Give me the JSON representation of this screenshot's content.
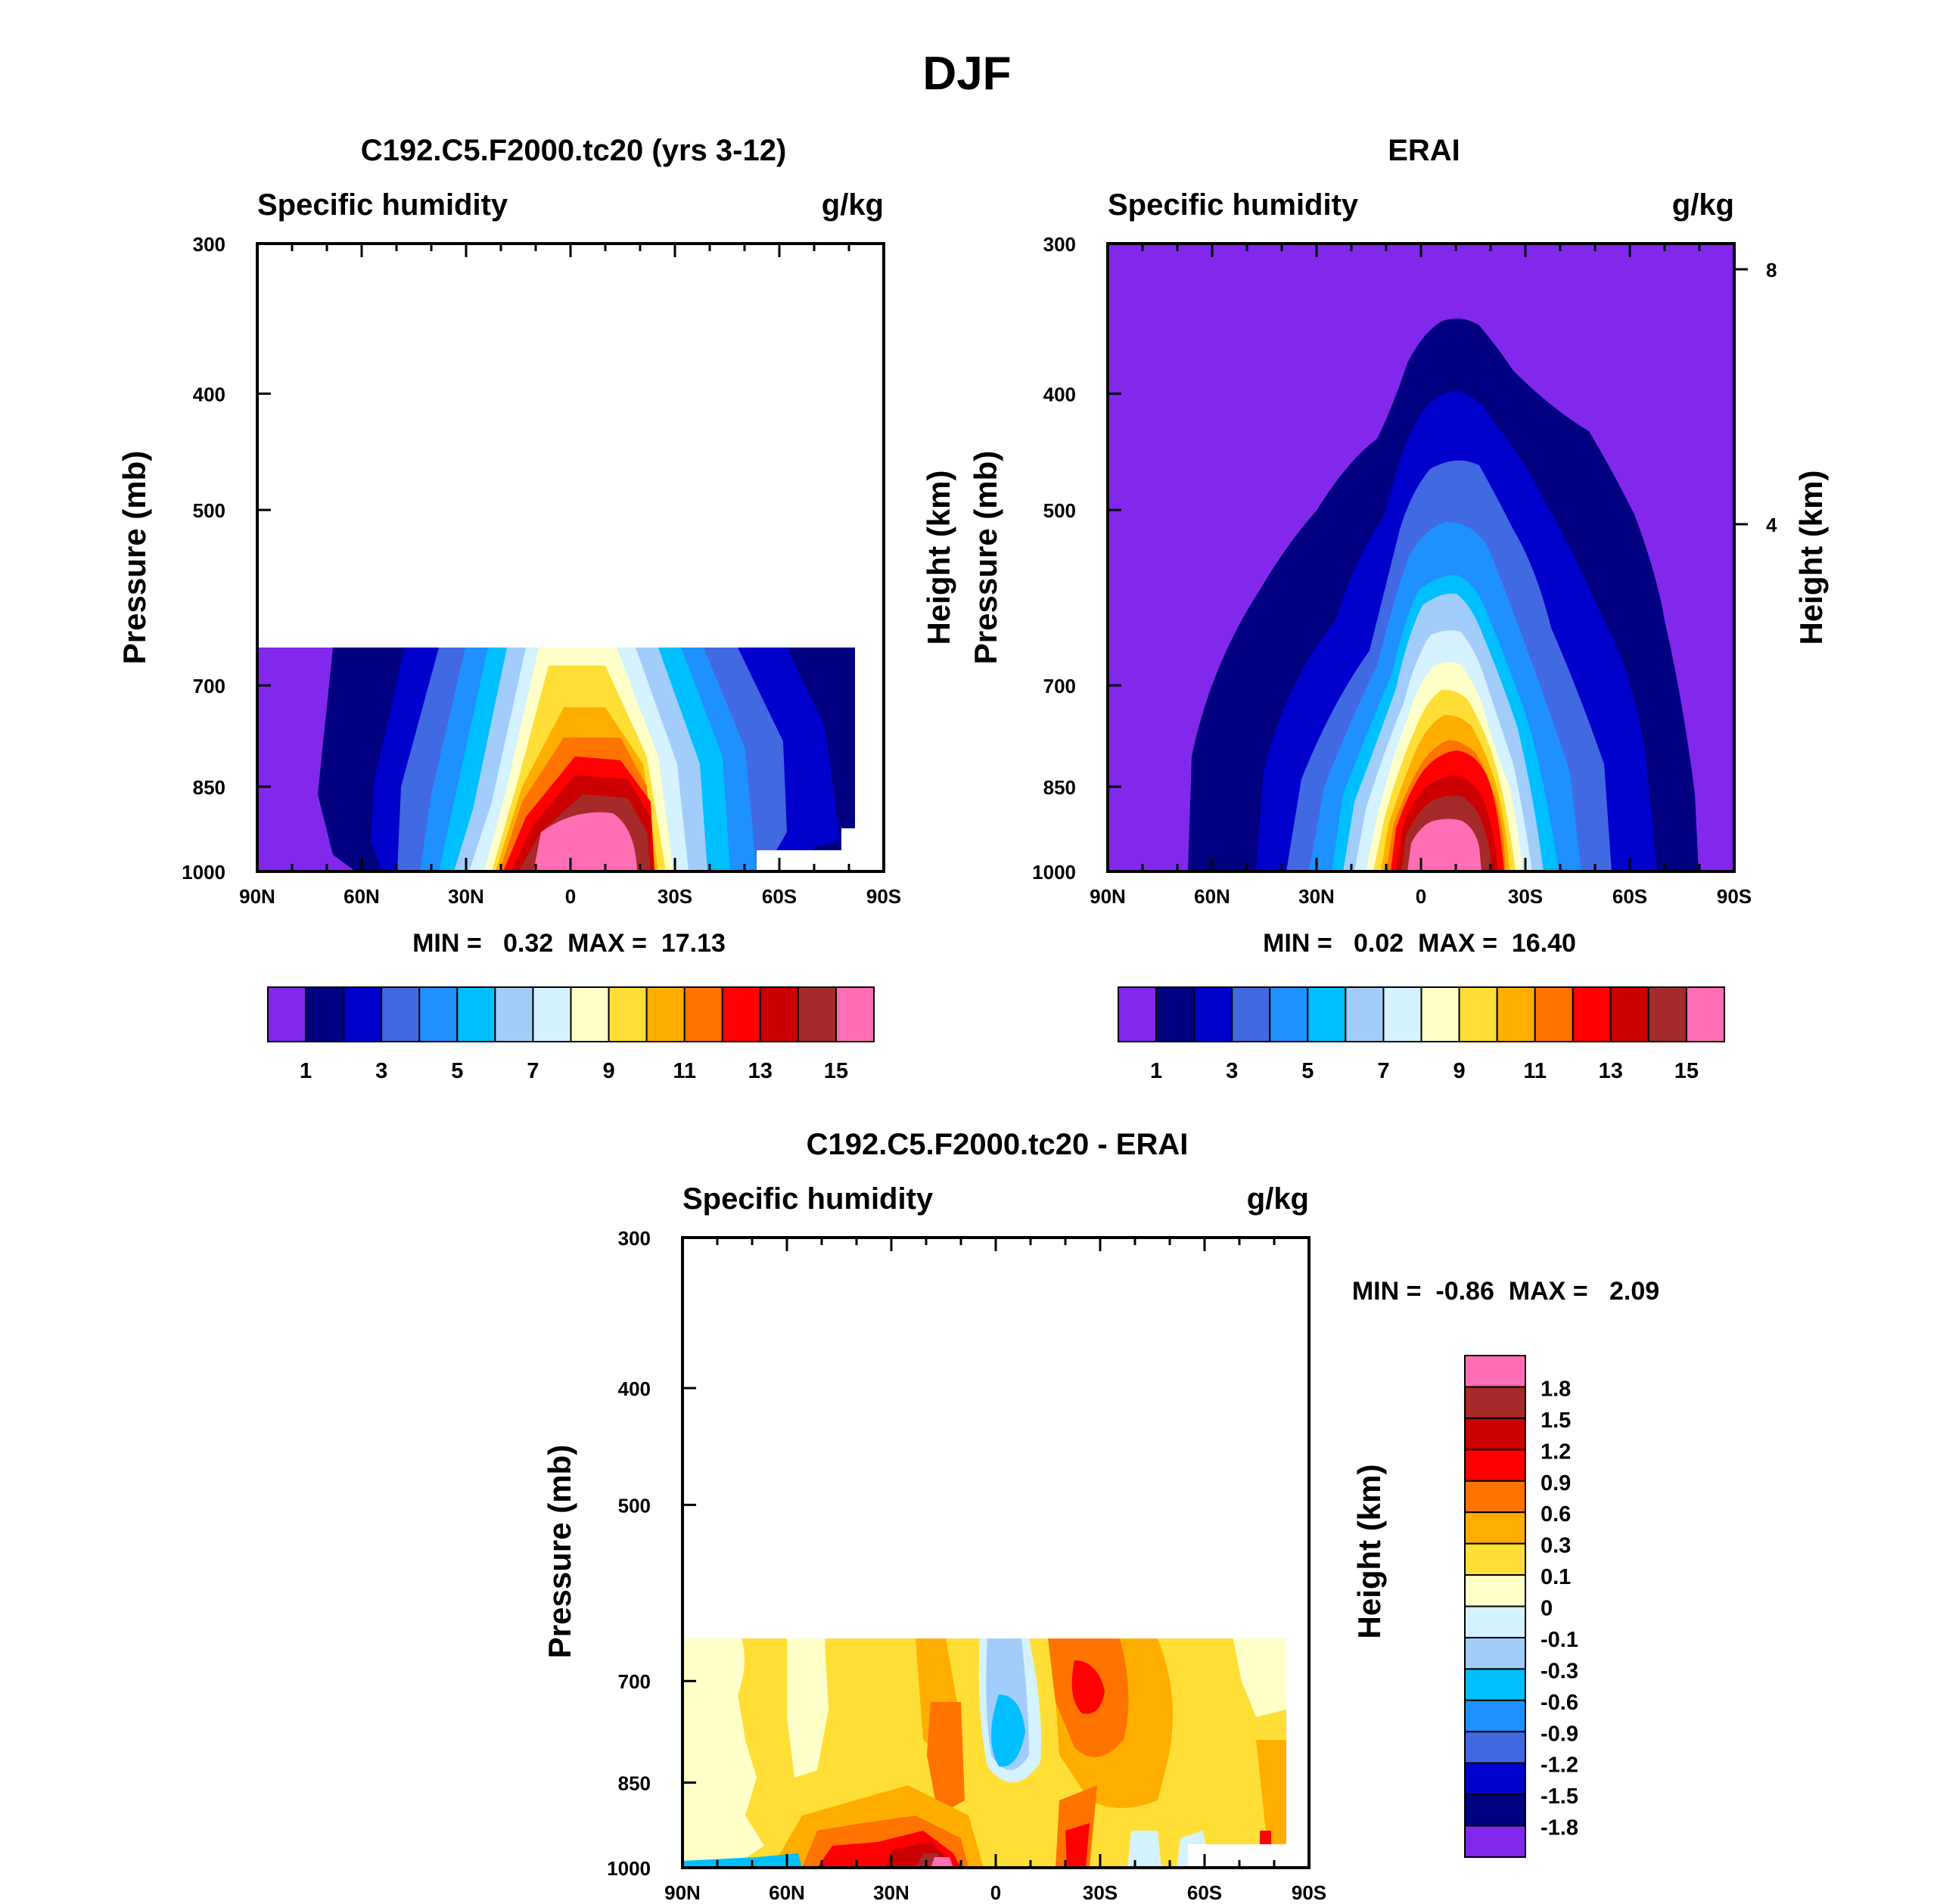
{
  "figure_title": "DJF",
  "colors": {
    "abs": [
      "#8227ec",
      "#000080",
      "#0000cd",
      "#4169e1",
      "#1e90ff",
      "#00bfff",
      "#a2cdfa",
      "#d4f2ff",
      "#ffffc8",
      "#ffdf36",
      "#ffae00",
      "#ff7300",
      "#ff0000",
      "#cc0000",
      "#a52a2a",
      "#ff6eb4"
    ],
    "diff": [
      "#8227ec",
      "#000080",
      "#0000cd",
      "#4169e1",
      "#1e90ff",
      "#00bfff",
      "#a2cdfa",
      "#d4f2ff",
      "#ffffc8",
      "#ffdf36",
      "#ffae00",
      "#ff7300",
      "#ff0000",
      "#cc0000",
      "#a52a2a",
      "#ff6eb4"
    ]
  },
  "panels": {
    "model": {
      "title": "C192.C5.F2000.tc20 (yrs 3-12)",
      "left_label": "Specific humidity",
      "right_label": "g/kg",
      "ylabel": "Pressure (mb)",
      "min_max": "MIN =   0.32  MAX =  17.13"
    },
    "obs": {
      "title": "ERAI",
      "left_label": "Specific humidity",
      "right_label": "g/kg",
      "ylabel_left_a": "Height (km)",
      "ylabel_left_b": "Pressure (mb)",
      "ylabel_right": "Height (km)",
      "min_max": "MIN =   0.02  MAX =  16.40"
    },
    "diff": {
      "title": "C192.C5.F2000.tc20 - ERAI",
      "left_label": "Specific humidity",
      "right_label": "g/kg",
      "ylabel": "Pressure (mb)",
      "ylabel_right": "Height (km)",
      "min_max": "MIN =  -0.86  MAX =   2.09"
    }
  },
  "chart_data": [
    {
      "type": "contour",
      "title": "C192.C5.F2000.tc20 (yrs 3-12)",
      "variable": "Specific humidity",
      "units": "g/kg",
      "x_ticks": [
        "90N",
        "60N",
        "30N",
        "0",
        "30S",
        "60S",
        "90S"
      ],
      "y_ticks": [
        "300",
        "400",
        "500",
        "700",
        "850",
        "1000"
      ],
      "ylabel": "Pressure (mb)",
      "ylim": [
        1000,
        300
      ],
      "colorbar_labels": [
        "1",
        "3",
        "5",
        "7",
        "9",
        "11",
        "13",
        "15"
      ],
      "colorbar_levels": [
        1,
        2,
        3,
        4,
        5,
        6,
        7,
        8,
        9,
        10,
        11,
        12,
        13,
        14,
        15
      ],
      "min": 0.32,
      "max": 17.13
    },
    {
      "type": "contour",
      "title": "ERAI",
      "variable": "Specific humidity",
      "units": "g/kg",
      "x_ticks": [
        "90N",
        "60N",
        "30N",
        "0",
        "30S",
        "60S",
        "90S"
      ],
      "y_ticks": [
        "300",
        "400",
        "500",
        "700",
        "850",
        "1000"
      ],
      "y2_ticks": [
        "8",
        "4"
      ],
      "ylabel": "Pressure (mb)",
      "ylim": [
        1000,
        300
      ],
      "colorbar_labels": [
        "1",
        "3",
        "5",
        "7",
        "9",
        "11",
        "13",
        "15"
      ],
      "colorbar_levels": [
        1,
        2,
        3,
        4,
        5,
        6,
        7,
        8,
        9,
        10,
        11,
        12,
        13,
        14,
        15
      ],
      "min": 0.02,
      "max": 16.4
    },
    {
      "type": "contour",
      "title": "C192.C5.F2000.tc20 - ERAI",
      "variable": "Specific humidity",
      "units": "g/kg",
      "x_ticks": [
        "90N",
        "60N",
        "30N",
        "0",
        "30S",
        "60S",
        "90S"
      ],
      "y_ticks": [
        "300",
        "400",
        "500",
        "700",
        "850",
        "1000"
      ],
      "ylabel": "Pressure (mb)",
      "ylim": [
        1000,
        300
      ],
      "colorbar_labels": [
        "1.8",
        "1.5",
        "1.2",
        "0.9",
        "0.6",
        "0.3",
        "0.1",
        "0",
        "-0.1",
        "-0.3",
        "-0.6",
        "-0.9",
        "-1.2",
        "-1.5",
        "-1.8"
      ],
      "colorbar_levels": [
        -1.8,
        -1.5,
        -1.2,
        -0.9,
        -0.6,
        -0.3,
        -0.1,
        0,
        0.1,
        0.3,
        0.6,
        0.9,
        1.2,
        1.5,
        1.8
      ],
      "min": -0.86,
      "max": 2.09
    }
  ]
}
